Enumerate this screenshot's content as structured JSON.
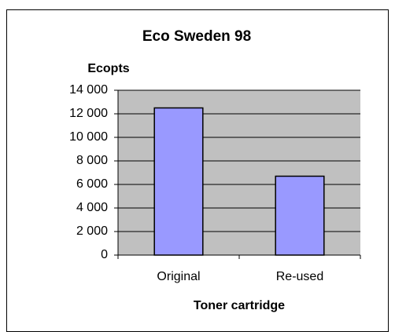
{
  "chart_data": {
    "type": "bar",
    "title": "Eco Sweden 98",
    "y_label": "Ecopts",
    "x_label": "Toner cartridge",
    "categories": [
      "Original",
      "Re-used"
    ],
    "values": [
      12500,
      6700
    ],
    "color": "#9999ff",
    "ylim": [
      0,
      14000
    ],
    "yticks": [
      0,
      {
        "value": 2000,
        "label": "2 000"
      },
      {
        "value": 4000,
        "label": "4 000"
      },
      {
        "value": 6000,
        "label": "6 000"
      },
      {
        "value": 8000,
        "label": "8 000"
      },
      {
        "value": 10000,
        "label": "10 000"
      },
      {
        "value": 12000,
        "label": "12 000"
      },
      {
        "value": 14000,
        "label": "14 000"
      }
    ],
    "grid": true,
    "plot_background": "#c0c0c0"
  }
}
